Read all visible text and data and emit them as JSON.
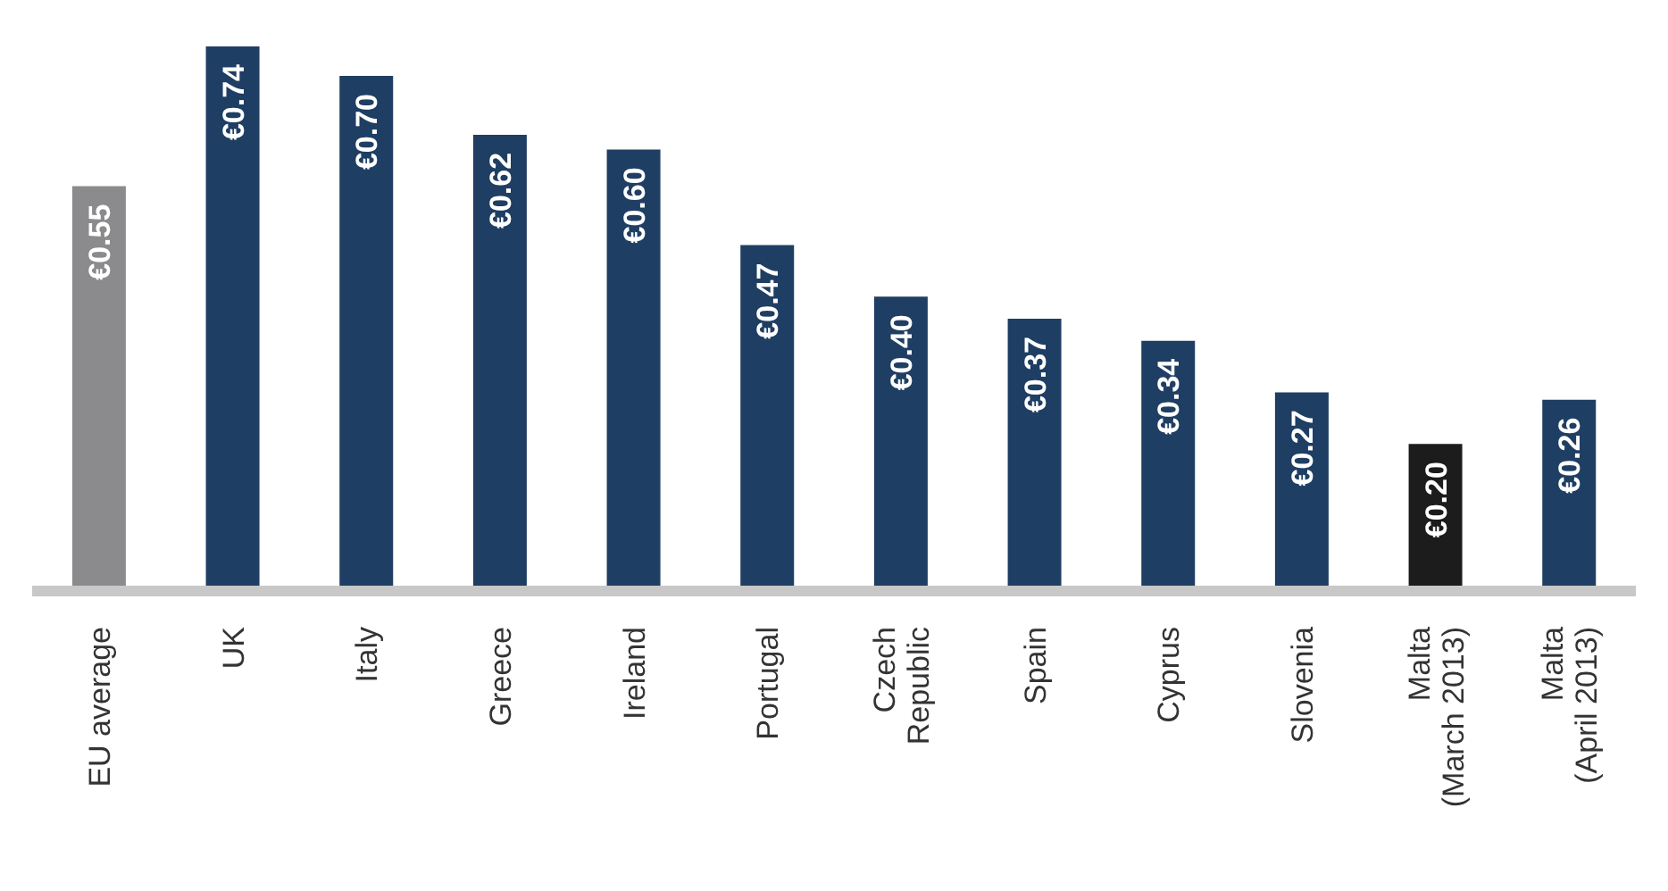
{
  "chart_data": {
    "type": "bar",
    "categories": [
      "EU average",
      "UK",
      "Italy",
      "Greece",
      "Ireland",
      "Portugal",
      "Czech Republic",
      "Spain",
      "Cyprus",
      "Slovenia",
      "Malta (March 2013)",
      "Malta (April 2013)"
    ],
    "values": [
      0.55,
      0.74,
      0.7,
      0.62,
      0.6,
      0.47,
      0.4,
      0.37,
      0.34,
      0.27,
      0.2,
      0.26
    ],
    "value_labels": [
      "€0.55",
      "€0.74",
      "€0.70",
      "€0.62",
      "€0.60",
      "€0.47",
      "€0.40",
      "€0.37",
      "€0.34",
      "€0.27",
      "€0.20",
      "€0.26"
    ],
    "colors": [
      "#8b8b8d",
      "#1f3e63",
      "#1f3e63",
      "#1f3e63",
      "#1f3e63",
      "#1f3e63",
      "#1f3e63",
      "#1f3e63",
      "#1f3e63",
      "#1f3e63",
      "#1c1c1c",
      "#1f3e63"
    ],
    "grid": false,
    "legend": false
  }
}
